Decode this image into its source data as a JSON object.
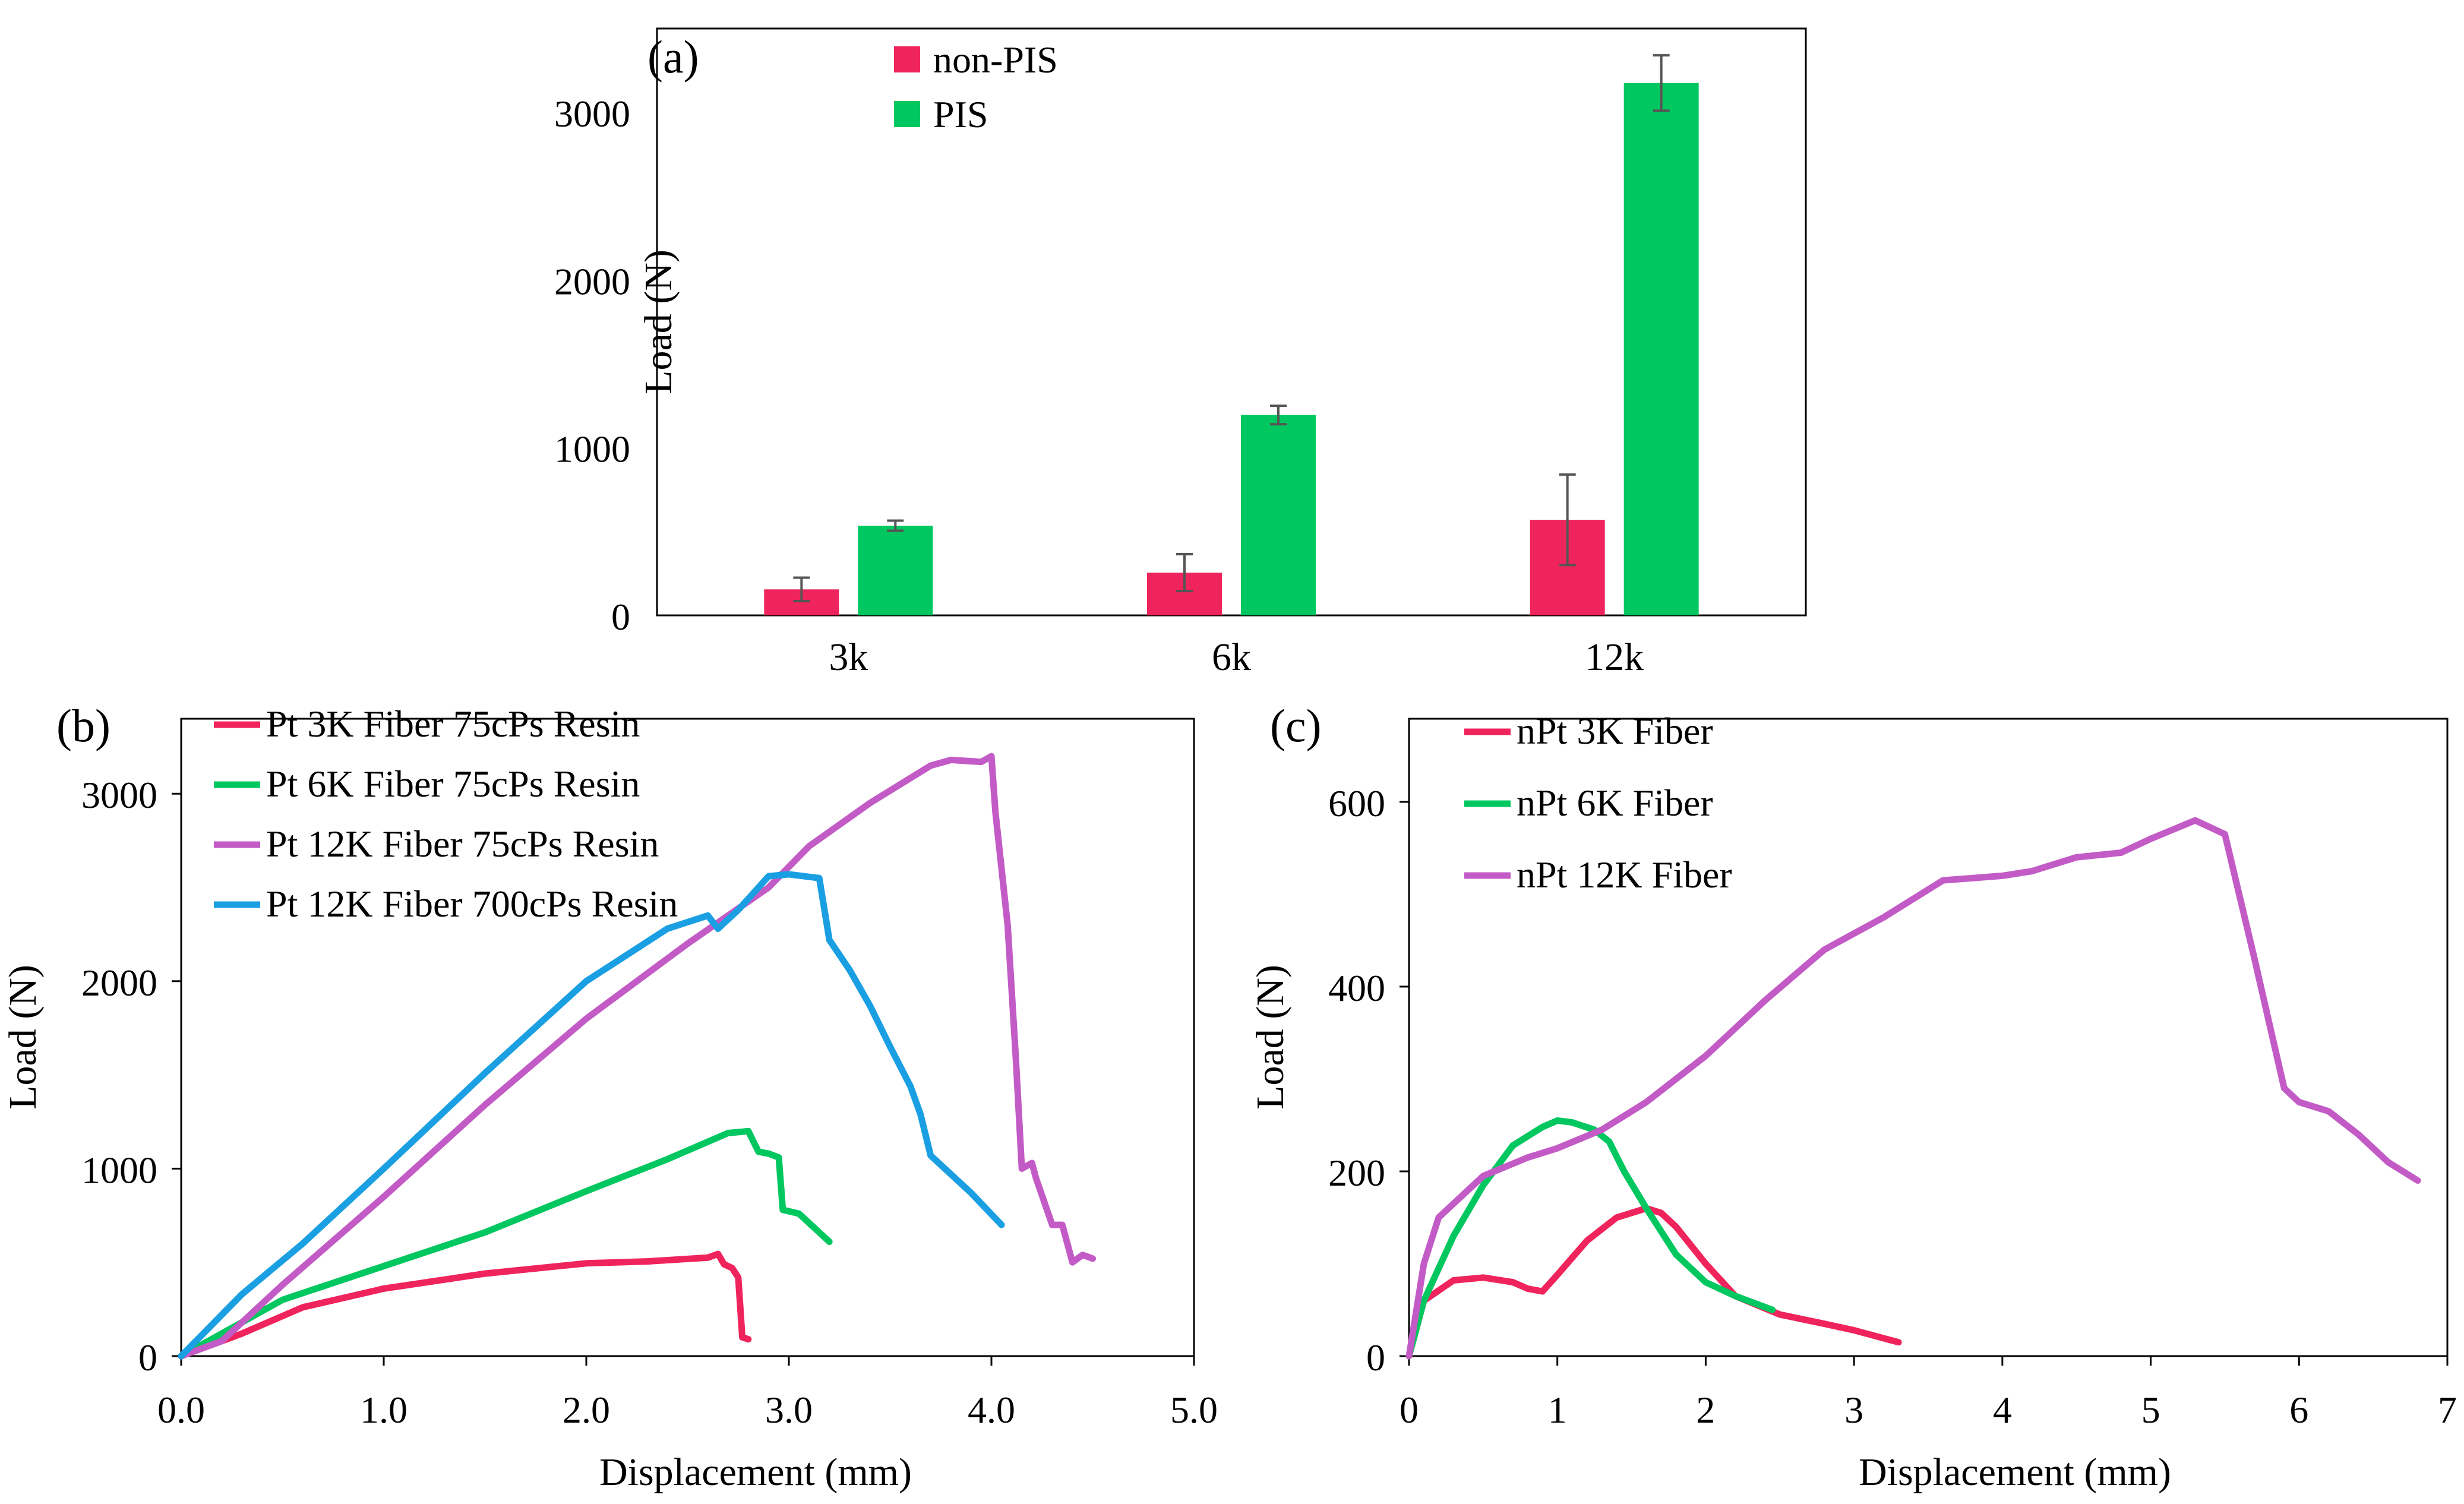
{
  "colors": {
    "red": "#f0245c",
    "green": "#00c75f",
    "purple": "#c35bc7",
    "blue": "#1b9fe3"
  },
  "chart_data": [
    {
      "id": "a",
      "panel_label": "(a)",
      "type": "bar",
      "categories": [
        "3k",
        "6k",
        "12k"
      ],
      "series": [
        {
          "name": "non-PIS",
          "color": "red",
          "values": [
            155,
            255,
            570
          ],
          "errors": [
            70,
            110,
            270
          ]
        },
        {
          "name": "PIS",
          "color": "green",
          "values": [
            535,
            1195,
            3175
          ],
          "errors": [
            30,
            55,
            165
          ]
        }
      ],
      "ylabel": "Load (N)",
      "xlabel": "",
      "ylim": [
        0,
        3500
      ],
      "yticks": [
        0,
        1000,
        2000,
        3000
      ],
      "ytick_labels": [
        "0",
        "1000",
        "2000",
        "3000"
      ],
      "legend": "top-left"
    },
    {
      "id": "b",
      "panel_label": "(b)",
      "type": "line",
      "xlabel": "Displacement (mm)",
      "ylabel": "Load (N)",
      "xlim": [
        0,
        5
      ],
      "ylim": [
        0,
        3400
      ],
      "xticks": [
        0,
        1,
        2,
        3,
        4,
        5
      ],
      "xtick_labels": [
        "0.0",
        "1.0",
        "2.0",
        "3.0",
        "4.0",
        "5.0"
      ],
      "yticks": [
        0,
        1000,
        2000,
        3000
      ],
      "ytick_labels": [
        "0",
        "1000",
        "2000",
        "3000"
      ],
      "legend": "top-left",
      "series": [
        {
          "name": "Pt 3K Fiber 75cPs Resin",
          "color": "red",
          "x": [
            0,
            0.3,
            0.6,
            1.0,
            1.5,
            2.0,
            2.3,
            2.6,
            2.65,
            2.68,
            2.72,
            2.75,
            2.77,
            2.8
          ],
          "y": [
            0,
            120,
            260,
            360,
            440,
            495,
            505,
            525,
            545,
            490,
            470,
            420,
            100,
            90
          ]
        },
        {
          "name": "Pt 6K Fiber 75cPs Resin",
          "color": "green",
          "x": [
            0,
            0.2,
            0.5,
            1.0,
            1.5,
            2.0,
            2.4,
            2.7,
            2.8,
            2.85,
            2.9,
            2.95,
            2.97,
            3.05,
            3.2
          ],
          "y": [
            0,
            120,
            300,
            480,
            660,
            880,
            1050,
            1190,
            1200,
            1090,
            1080,
            1060,
            780,
            760,
            610
          ]
        },
        {
          "name": "Pt 12K Fiber 75cPs Resin",
          "color": "purple",
          "x": [
            0,
            0.2,
            0.5,
            1.0,
            1.5,
            2.0,
            2.5,
            2.9,
            3.1,
            3.4,
            3.7,
            3.8,
            3.95,
            4.0,
            4.02,
            4.08,
            4.12,
            4.15,
            4.2,
            4.22,
            4.3,
            4.35,
            4.4,
            4.45,
            4.5
          ],
          "y": [
            0,
            80,
            380,
            850,
            1340,
            1800,
            2200,
            2500,
            2720,
            2950,
            3150,
            3180,
            3170,
            3200,
            2900,
            2300,
            1600,
            1000,
            1030,
            950,
            700,
            700,
            500,
            540,
            520
          ]
        },
        {
          "name": "Pt 12K Fiber 700cPs Resin",
          "color": "blue",
          "x": [
            0,
            0.3,
            0.6,
            1.0,
            1.5,
            2.0,
            2.4,
            2.6,
            2.65,
            2.75,
            2.9,
            3.0,
            3.15,
            3.2,
            3.3,
            3.4,
            3.5,
            3.6,
            3.65,
            3.7,
            3.9,
            4.05
          ],
          "y": [
            0,
            330,
            600,
            1000,
            1510,
            2000,
            2280,
            2350,
            2280,
            2380,
            2560,
            2570,
            2550,
            2220,
            2060,
            1870,
            1650,
            1440,
            1290,
            1070,
            870,
            700
          ]
        }
      ]
    },
    {
      "id": "c",
      "panel_label": "(c)",
      "type": "line",
      "xlabel": "Displacement (mm)",
      "ylabel": "Load (N)",
      "xlim": [
        0,
        7
      ],
      "ylim": [
        0,
        690
      ],
      "xticks": [
        0,
        1,
        2,
        3,
        4,
        5,
        6,
        7
      ],
      "xtick_labels": [
        "0",
        "1",
        "2",
        "3",
        "4",
        "5",
        "6",
        "7"
      ],
      "yticks": [
        0,
        200,
        400,
        600
      ],
      "ytick_labels": [
        "0",
        "200",
        "400",
        "600"
      ],
      "legend": "top-left",
      "series": [
        {
          "name": "nPt 3K Fiber",
          "color": "red",
          "x": [
            0,
            0.1,
            0.3,
            0.5,
            0.7,
            0.8,
            0.9,
            1.0,
            1.2,
            1.4,
            1.6,
            1.7,
            1.8,
            2.0,
            2.2,
            2.5,
            2.8,
            3.0,
            3.3
          ],
          "y": [
            0,
            60,
            82,
            85,
            80,
            73,
            70,
            88,
            125,
            150,
            160,
            155,
            140,
            100,
            65,
            45,
            35,
            28,
            15
          ]
        },
        {
          "name": "nPt 6K Fiber",
          "color": "green",
          "x": [
            0,
            0.1,
            0.3,
            0.5,
            0.7,
            0.9,
            1.0,
            1.1,
            1.25,
            1.35,
            1.45,
            1.6,
            1.8,
            2.0,
            2.2,
            2.45
          ],
          "y": [
            0,
            60,
            130,
            185,
            228,
            248,
            255,
            253,
            245,
            232,
            200,
            160,
            110,
            80,
            65,
            50
          ]
        },
        {
          "name": "nPt 12K Fiber",
          "color": "purple",
          "x": [
            0,
            0.1,
            0.2,
            0.5,
            0.8,
            1.0,
            1.3,
            1.6,
            2.0,
            2.4,
            2.8,
            3.2,
            3.6,
            4.0,
            4.2,
            4.5,
            4.8,
            5.0,
            5.3,
            5.5,
            5.7,
            5.8,
            5.9,
            6.0,
            6.2,
            6.4,
            6.6,
            6.8
          ],
          "y": [
            0,
            100,
            150,
            195,
            215,
            225,
            245,
            275,
            325,
            385,
            440,
            475,
            515,
            520,
            525,
            540,
            545,
            560,
            580,
            565,
            430,
            360,
            290,
            275,
            265,
            240,
            210,
            190
          ]
        }
      ]
    }
  ]
}
